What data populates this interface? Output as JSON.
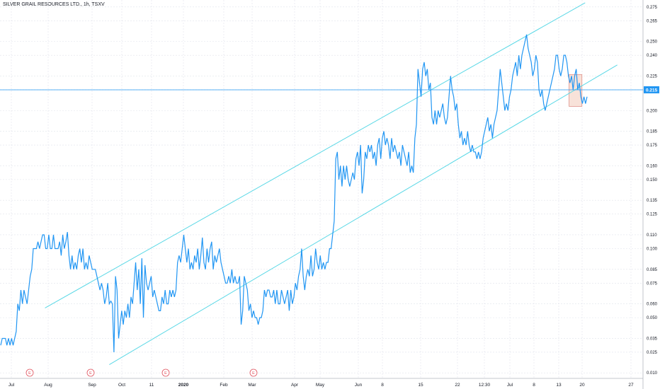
{
  "chart_data": {
    "type": "line",
    "title": "SILVER GRAIL RESOURCES LTD., 1h, TSXV",
    "y_ticks": [
      "0.275",
      "0.265",
      "0.250",
      "0.240",
      "0.225",
      "0.215",
      "0.200",
      "0.185",
      "0.175",
      "0.160",
      "0.150",
      "0.135",
      "0.125",
      "0.110",
      "0.100",
      "0.085",
      "0.075",
      "0.060",
      "0.050",
      "0.035",
      "0.025",
      "0.010"
    ],
    "x_ticks": [
      {
        "label": "Jul",
        "bold": false
      },
      {
        "label": "Aug",
        "bold": false
      },
      {
        "label": "Sep",
        "bold": false
      },
      {
        "label": "Oct",
        "bold": false
      },
      {
        "label": "11",
        "bold": false
      },
      {
        "label": "2020",
        "bold": true
      },
      {
        "label": "Feb",
        "bold": false
      },
      {
        "label": "Mar",
        "bold": false
      },
      {
        "label": "Apr",
        "bold": false
      },
      {
        "label": "May",
        "bold": false
      },
      {
        "label": "Jun",
        "bold": false
      },
      {
        "label": "8",
        "bold": false
      },
      {
        "label": "15",
        "bold": false
      },
      {
        "label": "22",
        "bold": false
      },
      {
        "label": "12:30",
        "bold": false
      },
      {
        "label": "Jul",
        "bold": false
      },
      {
        "label": "8",
        "bold": false
      },
      {
        "label": "13",
        "bold": false
      },
      {
        "label": "20",
        "bold": false
      },
      {
        "label": "27",
        "bold": false
      }
    ],
    "ylim": [
      0.005,
      0.279
    ],
    "current_price": "0.215",
    "earnings_markers": [
      "E",
      "E",
      "E",
      "E"
    ],
    "series": [
      {
        "values": [
          0.03,
          0.035,
          0.035,
          0.035,
          0.03,
          0.035,
          0.03,
          0.035,
          0.03,
          0.035,
          0.04,
          0.06,
          0.055,
          0.07,
          0.06,
          0.07,
          0.065,
          0.06,
          0.07,
          0.08,
          0.085,
          0.1,
          0.1,
          0.1,
          0.105,
          0.1,
          0.105,
          0.11,
          0.11,
          0.1,
          0.1,
          0.11,
          0.1,
          0.1,
          0.11,
          0.1,
          0.1,
          0.1,
          0.105,
          0.095,
          0.11,
          0.1,
          0.105,
          0.112,
          0.095,
          0.085,
          0.095,
          0.085,
          0.09,
          0.085,
          0.095,
          0.1,
          0.09,
          0.1,
          0.085,
          0.09,
          0.085,
          0.095,
          0.09,
          0.085,
          0.085,
          0.085,
          0.08,
          0.075,
          0.07,
          0.075,
          0.07,
          0.06,
          0.065,
          0.075,
          0.06,
          0.062,
          0.06,
          0.025,
          0.08,
          0.07,
          0.035,
          0.045,
          0.055,
          0.045,
          0.055,
          0.05,
          0.06,
          0.05,
          0.065,
          0.06,
          0.075,
          0.09,
          0.07,
          0.085,
          0.06,
          0.093,
          0.05,
          0.088,
          0.075,
          0.07,
          0.075,
          0.08,
          0.065,
          0.07,
          0.065,
          0.06,
          0.055,
          0.055,
          0.065,
          0.06,
          0.07,
          0.06,
          0.06,
          0.07,
          0.065,
          0.07,
          0.065,
          0.07,
          0.09,
          0.095,
          0.09,
          0.1,
          0.11,
          0.1,
          0.09,
          0.1,
          0.085,
          0.09,
          0.085,
          0.095,
          0.09,
          0.1,
          0.085,
          0.095,
          0.108,
          0.09,
          0.085,
          0.1,
          0.09,
          0.1,
          0.105,
          0.085,
          0.095,
          0.09,
          0.095,
          0.1,
          0.09,
          0.085,
          0.08,
          0.075,
          0.075,
          0.08,
          0.075,
          0.085,
          0.075,
          0.08,
          0.075,
          0.075,
          0.08,
          0.045,
          0.055,
          0.08,
          0.075,
          0.07,
          0.055,
          0.06,
          0.05,
          0.055,
          0.05,
          0.05,
          0.045,
          0.05,
          0.05,
          0.055,
          0.07,
          0.065,
          0.07,
          0.07,
          0.065,
          0.065,
          0.07,
          0.06,
          0.07,
          0.06,
          0.06,
          0.07,
          0.065,
          0.06,
          0.065,
          0.07,
          0.055,
          0.07,
          0.06,
          0.065,
          0.075,
          0.07,
          0.08,
          0.085,
          0.1,
          0.08,
          0.07,
          0.08,
          0.085,
          0.08,
          0.095,
          0.08,
          0.085,
          0.1,
          0.09,
          0.085,
          0.095,
          0.085,
          0.09,
          0.085,
          0.09,
          0.09,
          0.1,
          0.1,
          0.11,
          0.12,
          0.165,
          0.17,
          0.15,
          0.16,
          0.145,
          0.16,
          0.15,
          0.16,
          0.15,
          0.145,
          0.15,
          0.155,
          0.15,
          0.165,
          0.17,
          0.16,
          0.175,
          0.14,
          0.15,
          0.17,
          0.165,
          0.175,
          0.17,
          0.175,
          0.165,
          0.17,
          0.16,
          0.175,
          0.18,
          0.165,
          0.18,
          0.185,
          0.175,
          0.18,
          0.175,
          0.165,
          0.18,
          0.17,
          0.175,
          0.17,
          0.165,
          0.17,
          0.16,
          0.175,
          0.17,
          0.165,
          0.16,
          0.17,
          0.155,
          0.16,
          0.155,
          0.18,
          0.19,
          0.23,
          0.22,
          0.21,
          0.23,
          0.235,
          0.225,
          0.23,
          0.215,
          0.22,
          0.195,
          0.19,
          0.2,
          0.19,
          0.2,
          0.195,
          0.2,
          0.205,
          0.195,
          0.19,
          0.195,
          0.21,
          0.225,
          0.215,
          0.21,
          0.2,
          0.205,
          0.19,
          0.18,
          0.185,
          0.175,
          0.18,
          0.175,
          0.185,
          0.175,
          0.17,
          0.175,
          0.17,
          0.17,
          0.165,
          0.17,
          0.165,
          0.17,
          0.18,
          0.185,
          0.19,
          0.195,
          0.185,
          0.19,
          0.18,
          0.19,
          0.195,
          0.2,
          0.215,
          0.23,
          0.22,
          0.21,
          0.2,
          0.205,
          0.2,
          0.21,
          0.215,
          0.225,
          0.23,
          0.235,
          0.225,
          0.24,
          0.23,
          0.24,
          0.245,
          0.25,
          0.255,
          0.245,
          0.24,
          0.235,
          0.225,
          0.23,
          0.24,
          0.235,
          0.215,
          0.21,
          0.215,
          0.205,
          0.2,
          0.205,
          0.21,
          0.215,
          0.22,
          0.225,
          0.23,
          0.24,
          0.24,
          0.23,
          0.225,
          0.23,
          0.24,
          0.24,
          0.235,
          0.225,
          0.22,
          0.225,
          0.215,
          0.225,
          0.23,
          0.215,
          0.22,
          0.21,
          0.205,
          0.21,
          0.205,
          0.21
        ]
      }
    ],
    "channel": [
      {
        "name": "upper",
        "from": [
          0.07,
          0.057
        ],
        "to": [
          0.91,
          0.278
        ]
      },
      {
        "name": "lower",
        "from": [
          0.17,
          0.016
        ],
        "to": [
          0.96,
          0.233
        ]
      }
    ],
    "highlight_box": {
      "x_from": 0.885,
      "x_to": 0.905,
      "y_from": 0.203,
      "y_to": 0.226
    },
    "colors": {
      "line": "#2962ff",
      "series": "#2196f3",
      "channel": "#5ad8e6",
      "current_price": "#2196f3",
      "grid": "#e0e3eb",
      "box_fill": "#f5d5c9",
      "box_stroke": "#e0928a",
      "earnings": "#e0525d"
    }
  }
}
